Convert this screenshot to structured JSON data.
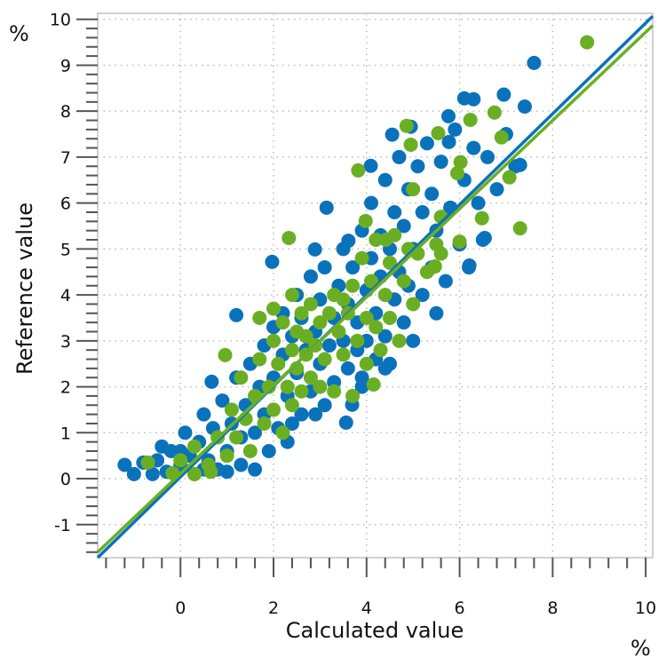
{
  "chart_data": {
    "type": "scatter",
    "title": "",
    "xlabel": "Calculated value",
    "ylabel": "Reference value",
    "x_unit": "%",
    "y_unit": "%",
    "xlim": [
      -1.78,
      10.15
    ],
    "ylim": [
      -1.72,
      10.13
    ],
    "x_ticks": [
      0,
      2,
      4,
      6,
      8,
      10
    ],
    "y_ticks": [
      -1,
      0,
      1,
      2,
      3,
      4,
      5,
      6,
      7,
      8,
      9,
      10
    ],
    "grid": true,
    "legend": "none",
    "series": [
      {
        "color": "#0a72bb",
        "points": [
          [
            -1.2,
            0.3
          ],
          [
            -1.0,
            0.1
          ],
          [
            -0.8,
            0.35
          ],
          [
            -0.6,
            0.1
          ],
          [
            -0.5,
            0.4
          ],
          [
            -0.3,
            0.15
          ],
          [
            -0.2,
            0.6
          ],
          [
            0.0,
            0.3
          ],
          [
            0.1,
            1.0
          ],
          [
            0.2,
            0.5
          ],
          [
            0.3,
            0.1
          ],
          [
            0.4,
            0.8
          ],
          [
            0.5,
            1.4
          ],
          [
            0.6,
            0.4
          ],
          [
            0.7,
            1.1
          ],
          [
            0.8,
            0.2
          ],
          [
            0.9,
            1.7
          ],
          [
            1.0,
            0.6
          ],
          [
            1.1,
            1.2
          ],
          [
            1.2,
            2.2
          ],
          [
            1.3,
            0.9
          ],
          [
            1.3,
            0.3
          ],
          [
            1.4,
            1.6
          ],
          [
            1.5,
            2.5
          ],
          [
            1.6,
            1.0
          ],
          [
            1.6,
            0.2
          ],
          [
            1.7,
            2.0
          ],
          [
            1.8,
            2.9
          ],
          [
            1.8,
            1.4
          ],
          [
            1.9,
            0.6
          ],
          [
            2.0,
            3.3
          ],
          [
            2.0,
            2.2
          ],
          [
            2.1,
            1.1
          ],
          [
            2.2,
            2.7
          ],
          [
            2.2,
            3.6
          ],
          [
            2.3,
            1.8
          ],
          [
            2.3,
            0.8
          ],
          [
            2.4,
            3.1
          ],
          [
            2.5,
            2.3
          ],
          [
            2.5,
            4.0
          ],
          [
            2.6,
            1.4
          ],
          [
            2.6,
            3.5
          ],
          [
            2.7,
            2.8
          ],
          [
            2.8,
            4.4
          ],
          [
            2.8,
            1.9
          ],
          [
            2.9,
            3.2
          ],
          [
            3.0,
            2.5
          ],
          [
            3.0,
            3.9
          ],
          [
            3.1,
            1.6
          ],
          [
            3.1,
            4.6
          ],
          [
            3.2,
            2.9
          ],
          [
            3.3,
            3.5
          ],
          [
            3.3,
            2.1
          ],
          [
            3.4,
            4.2
          ],
          [
            3.5,
            3.0
          ],
          [
            3.5,
            5.0
          ],
          [
            3.6,
            2.4
          ],
          [
            3.6,
            3.8
          ],
          [
            3.7,
            4.6
          ],
          [
            3.8,
            2.8
          ],
          [
            3.8,
            3.4
          ],
          [
            3.9,
            5.4
          ],
          [
            3.9,
            2.2
          ],
          [
            4.0,
            4.1
          ],
          [
            4.0,
            3.0
          ],
          [
            4.1,
            4.8
          ],
          [
            4.1,
            6.0
          ],
          [
            4.2,
            2.6
          ],
          [
            4.2,
            3.6
          ],
          [
            4.3,
            5.3
          ],
          [
            4.3,
            4.4
          ],
          [
            4.4,
            3.1
          ],
          [
            4.4,
            6.5
          ],
          [
            4.5,
            2.5
          ],
          [
            4.5,
            5.0
          ],
          [
            4.6,
            3.9
          ],
          [
            4.6,
            5.8
          ],
          [
            4.7,
            4.5
          ],
          [
            4.7,
            7.0
          ],
          [
            4.8,
            3.4
          ],
          [
            4.8,
            5.5
          ],
          [
            4.9,
            4.2
          ],
          [
            4.9,
            6.3
          ],
          [
            5.0,
            3.0
          ],
          [
            5.0,
            5.0
          ],
          [
            5.1,
            6.8
          ],
          [
            5.2,
            4.0
          ],
          [
            5.2,
            5.8
          ],
          [
            5.3,
            7.3
          ],
          [
            5.4,
            4.6
          ],
          [
            5.4,
            6.2
          ],
          [
            5.5,
            3.6
          ],
          [
            5.5,
            5.4
          ],
          [
            5.6,
            6.9
          ],
          [
            5.7,
            4.3
          ],
          [
            5.8,
            5.9
          ],
          [
            5.9,
            7.6
          ],
          [
            6.0,
            5.1
          ],
          [
            6.1,
            6.5
          ],
          [
            6.2,
            4.6
          ],
          [
            6.3,
            7.2
          ],
          [
            6.4,
            6.0
          ],
          [
            6.5,
            5.2
          ],
          [
            6.6,
            7.0
          ],
          [
            6.8,
            6.3
          ],
          [
            7.0,
            7.5
          ],
          [
            7.2,
            6.8
          ],
          [
            7.4,
            8.1
          ],
          [
            7.6,
            9.05
          ],
          [
            6.1,
            8.28
          ],
          [
            6.3,
            8.26
          ],
          [
            6.95,
            8.36
          ],
          [
            5.76,
            7.89
          ],
          [
            4.55,
            7.49
          ],
          [
            3.14,
            5.9
          ],
          [
            4.09,
            6.81
          ],
          [
            1.97,
            4.72
          ],
          [
            1.2,
            3.56
          ],
          [
            2.89,
            4.99
          ],
          [
            3.61,
            5.18
          ],
          [
            3.69,
            1.61
          ],
          [
            3.56,
            1.22
          ],
          [
            0.67,
            2.11
          ],
          [
            5.77,
            7.33
          ],
          [
            4.95,
            7.66
          ],
          [
            7.3,
            6.83
          ],
          [
            6.54,
            5.24
          ],
          [
            6.21,
            4.64
          ],
          [
            -0.4,
            0.7
          ],
          [
            0.0,
            0.6
          ],
          [
            0.5,
            0.2
          ],
          [
            1.0,
            0.15
          ],
          [
            2.4,
            1.2
          ],
          [
            2.9,
            1.4
          ],
          [
            3.9,
            2.0
          ],
          [
            4.4,
            2.4
          ]
        ],
        "fit": {
          "slope": 0.988,
          "intercept": 0.039
        }
      },
      {
        "color": "#6aaf23",
        "points": [
          [
            8.74,
            9.5
          ],
          [
            7.3,
            5.45
          ],
          [
            7.07,
            6.56
          ],
          [
            6.9,
            7.43
          ],
          [
            6.75,
            7.97
          ],
          [
            6.23,
            7.81
          ],
          [
            6.02,
            6.89
          ],
          [
            5.95,
            6.65
          ],
          [
            6.48,
            5.67
          ],
          [
            6.0,
            5.16
          ],
          [
            5.54,
            7.52
          ],
          [
            4.86,
            7.68
          ],
          [
            4.95,
            7.27
          ],
          [
            3.82,
            6.71
          ],
          [
            2.33,
            5.24
          ],
          [
            4.15,
            2.05
          ],
          [
            0.96,
            2.69
          ],
          [
            -0.7,
            0.35
          ],
          [
            -0.17,
            0.12
          ],
          [
            0.65,
            0.15
          ],
          [
            5.0,
            6.3
          ],
          [
            4.42,
            5.2
          ],
          [
            3.98,
            5.61
          ],
          [
            5.47,
            4.62
          ],
          [
            5.6,
            5.7
          ],
          [
            0.0,
            0.4
          ],
          [
            0.3,
            0.7
          ],
          [
            0.6,
            0.3
          ],
          [
            0.8,
            0.9
          ],
          [
            1.0,
            0.5
          ],
          [
            1.1,
            1.5
          ],
          [
            1.2,
            0.9
          ],
          [
            1.3,
            2.2
          ],
          [
            1.4,
            1.3
          ],
          [
            1.5,
            0.6
          ],
          [
            1.6,
            1.8
          ],
          [
            1.7,
            2.6
          ],
          [
            1.8,
            1.2
          ],
          [
            1.9,
            2.0
          ],
          [
            2.0,
            3.0
          ],
          [
            2.0,
            1.5
          ],
          [
            2.1,
            2.5
          ],
          [
            2.2,
            1.0
          ],
          [
            2.2,
            3.4
          ],
          [
            2.3,
            2.0
          ],
          [
            2.4,
            2.8
          ],
          [
            2.4,
            1.6
          ],
          [
            2.5,
            3.2
          ],
          [
            2.5,
            2.4
          ],
          [
            2.6,
            1.9
          ],
          [
            2.6,
            3.6
          ],
          [
            2.7,
            2.7
          ],
          [
            2.7,
            3.1
          ],
          [
            2.8,
            2.2
          ],
          [
            2.8,
            3.8
          ],
          [
            2.9,
            2.9
          ],
          [
            3.0,
            3.4
          ],
          [
            3.0,
            2.0
          ],
          [
            3.1,
            2.6
          ],
          [
            3.2,
            3.6
          ],
          [
            3.3,
            1.9
          ],
          [
            3.3,
            4.0
          ],
          [
            3.4,
            3.2
          ],
          [
            3.5,
            2.7
          ],
          [
            3.6,
            3.6
          ],
          [
            3.7,
            4.2
          ],
          [
            3.7,
            1.8
          ],
          [
            3.8,
            3.0
          ],
          [
            3.9,
            4.8
          ],
          [
            4.0,
            3.5
          ],
          [
            4.0,
            2.5
          ],
          [
            4.1,
            4.3
          ],
          [
            4.2,
            3.3
          ],
          [
            4.2,
            5.2
          ],
          [
            4.3,
            2.8
          ],
          [
            4.4,
            4.0
          ],
          [
            4.5,
            4.7
          ],
          [
            4.5,
            3.5
          ],
          [
            4.6,
            5.3
          ],
          [
            4.7,
            3.0
          ],
          [
            4.8,
            4.3
          ],
          [
            4.9,
            5.0
          ],
          [
            5.0,
            3.8
          ],
          [
            5.1,
            4.9
          ],
          [
            5.3,
            4.5
          ],
          [
            5.5,
            5.1
          ],
          [
            5.6,
            4.9
          ],
          [
            1.7,
            3.5
          ],
          [
            2.0,
            3.7
          ],
          [
            0.3,
            0.1
          ],
          [
            2.4,
            4.0
          ],
          [
            3.5,
            3.9
          ]
        ],
        "fit": {
          "slope": 0.961,
          "intercept": 0.11
        }
      }
    ]
  }
}
